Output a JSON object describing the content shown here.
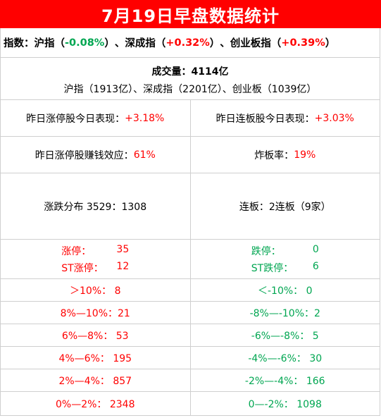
{
  "title": "7月19日早盘数据统计",
  "indices": {
    "prefix": "指数：",
    "items": [
      {
        "name": "沪指",
        "open": "（",
        "value": "-0.08%",
        "close": "）"
      },
      {
        "name": "深成指",
        "open": "（",
        "value": "+0.32%",
        "close": "）"
      },
      {
        "name": "创业板指",
        "open": "（",
        "value": "+0.39%",
        "close": "）"
      }
    ],
    "sep": "、",
    "colors": {
      "down": "#00a651",
      "up": "#ff0000"
    }
  },
  "volume": {
    "line1": "成交量：4114亿",
    "line2": "沪指（1913亿）、深成指（2201亿）、创业板（1039亿）"
  },
  "stats": [
    {
      "left_label": "昨日涨停股今日表现：",
      "left_value": "+3.18%",
      "right_label": "昨日连板股今日表现：",
      "right_value": "+3.03%"
    },
    {
      "left_label": "昨日涨停股赚钱效应：",
      "left_value": "61%",
      "right_label": "炸板率：",
      "right_value": "19%"
    },
    {
      "left_label": "涨跌分布 3529：1308",
      "left_value": "",
      "right_label": "连板：2连板（9家）",
      "right_value": ""
    }
  ],
  "limits": {
    "left": [
      {
        "label": "涨停：",
        "value": "35"
      },
      {
        "label": "ST涨停：",
        "value": "12"
      }
    ],
    "right": [
      {
        "label": "跌停：",
        "value": "0"
      },
      {
        "label": "ST跌停：",
        "value": "6"
      }
    ]
  },
  "distribution": [
    {
      "up": "＞10%：  8",
      "down": "＜-10%：  0"
    },
    {
      "up": "8%—10%：21",
      "down": "-8%—-10%：2"
    },
    {
      "up": "6%—8%：  53",
      "down": "-6%—-8%：  5"
    },
    {
      "up": "4%—6%：  195",
      "down": "-4%—-6%：  30"
    },
    {
      "up": "2%—4%：  857",
      "down": "-2%—-4%：  166"
    },
    {
      "up": "0%—2%：  2348",
      "down": "0—-2%：    1098"
    }
  ]
}
